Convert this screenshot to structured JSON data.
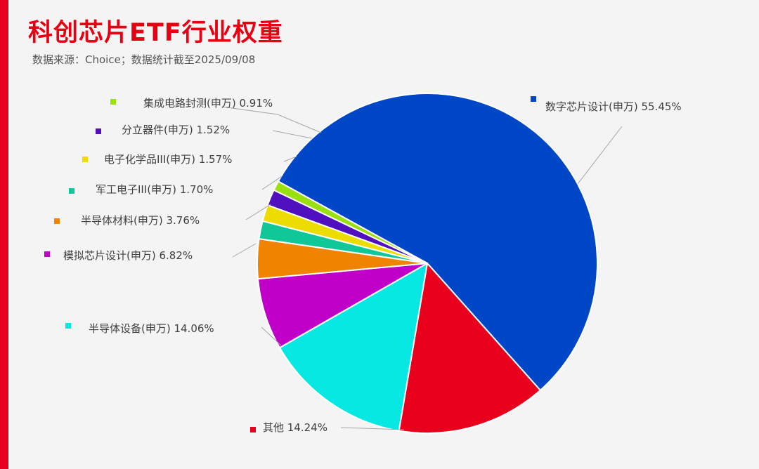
{
  "header": {
    "title": "科创芯片ETF行业权重",
    "source": "数据来源：Choice；数据统计截至2025/09/08"
  },
  "chart_data": {
    "type": "pie",
    "title": "科创芯片ETF行业权重",
    "slices": [
      {
        "label": "数字芯片设计(申万)",
        "value": 55.45,
        "display": "55.45%",
        "color": "#0047c8"
      },
      {
        "label": "其他",
        "value": 14.24,
        "display": "14.24%",
        "color": "#e8001c"
      },
      {
        "label": "半导体设备(申万)",
        "value": 14.06,
        "display": "14.06%",
        "color": "#07e8e2"
      },
      {
        "label": "模拟芯片设计(申万)",
        "value": 6.82,
        "display": "6.82%",
        "color": "#c000c8"
      },
      {
        "label": "半导体材料(申万)",
        "value": 3.76,
        "display": "3.76%",
        "color": "#f08300"
      },
      {
        "label": "军工电子III(申万)",
        "value": 1.7,
        "display": "1.70%",
        "color": "#10c897"
      },
      {
        "label": "电子化学品III(申万)",
        "value": 1.57,
        "display": "1.57%",
        "color": "#ecdc00"
      },
      {
        "label": "分立器件(申万)",
        "value": 1.52,
        "display": "1.52%",
        "color": "#5010c0"
      },
      {
        "label": "集成电路封测(申万)",
        "value": 0.91,
        "display": "0.91%",
        "color": "#9ae010"
      }
    ]
  }
}
